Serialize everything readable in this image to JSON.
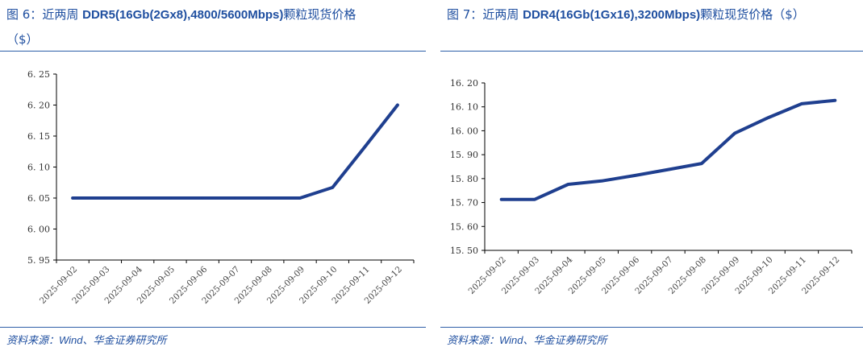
{
  "charts": {
    "left": {
      "figure_no": "图 6：",
      "title_prefix": "近两周",
      "title_main": "DDR5(16Gb(2Gx8),4800/5600Mbps)",
      "title_suffix": "颗粒现货价格",
      "title_unit": "（$）",
      "source_prefix": "资料来源：",
      "source_en": "Wind",
      "source_suffix": "、华金证券研究所"
    },
    "right": {
      "figure_no": "图 7：",
      "title_prefix": "近两周",
      "title_main": "DDR4(16Gb(1Gx16),3200Mbps)",
      "title_suffix": "颗粒现货价格（$）",
      "source_prefix": "资料来源：",
      "source_en": "Wind",
      "source_suffix": "、华金证券研究所"
    }
  },
  "chart_data": [
    {
      "type": "line",
      "title": "图 6：近两周 DDR5(16Gb(2Gx8),4800/5600Mbps)颗粒现货价格（$）",
      "x": [
        "2025-09-02",
        "2025-09-03",
        "2025-09-04",
        "2025-09-05",
        "2025-09-06",
        "2025-09-07",
        "2025-09-08",
        "2025-09-09",
        "2025-09-10",
        "2025-09-11",
        "2025-09-12"
      ],
      "series": [
        {
          "values": [
            6.05,
            6.05,
            6.05,
            6.05,
            6.05,
            6.05,
            6.05,
            6.05,
            6.067,
            6.133,
            6.2
          ],
          "color": "#1f3f8f"
        }
      ],
      "ylim": [
        5.95,
        6.25
      ],
      "yticks": [
        5.95,
        6.0,
        6.05,
        6.1,
        6.15,
        6.2,
        6.25
      ],
      "ytick_labels": [
        "5. 95",
        "6. 00",
        "6. 05",
        "6. 10",
        "6. 15",
        "6. 20",
        "6. 25"
      ],
      "grid": false,
      "legend": false
    },
    {
      "type": "line",
      "title": "图 7：近两周 DDR4(16Gb(1Gx16),3200Mbps)颗粒现货价格（$）",
      "x": [
        "2025-09-02",
        "2025-09-03",
        "2025-09-04",
        "2025-09-05",
        "2025-09-06",
        "2025-09-07",
        "2025-09-08",
        "2025-09-09",
        "2025-09-10",
        "2025-09-11",
        "2025-09-12"
      ],
      "series": [
        {
          "values": [
            15.713,
            15.713,
            15.776,
            15.79,
            15.813,
            15.838,
            15.863,
            15.99,
            16.055,
            16.113,
            16.127
          ],
          "color": "#1f3f8f"
        }
      ],
      "ylim": [
        15.5,
        16.2
      ],
      "yticks": [
        15.5,
        15.6,
        15.7,
        15.8,
        15.9,
        16.0,
        16.1,
        16.2
      ],
      "ytick_labels": [
        "15. 50",
        "15. 60",
        "15. 70",
        "15. 80",
        "15. 90",
        "16. 00",
        "16. 10",
        "16. 20"
      ],
      "grid": false,
      "legend": false
    }
  ]
}
